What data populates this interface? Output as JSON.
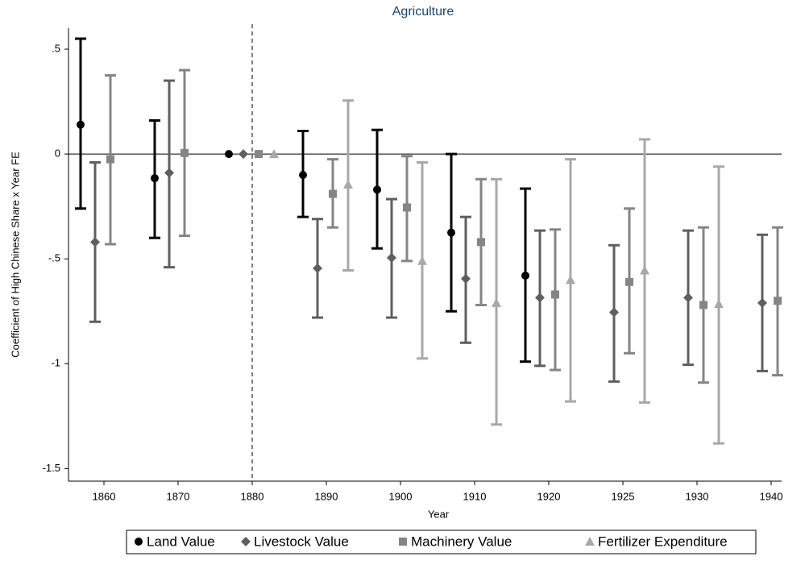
{
  "chart_data": {
    "type": "errorbar",
    "title": "Agriculture",
    "x_label": "Year",
    "y_label": "Coefficient of High Chinese Share x Year FE",
    "categories": [
      "1860",
      "1870",
      "1880",
      "1890",
      "1900",
      "1910",
      "1920",
      "1925",
      "1930",
      "1940"
    ],
    "ylim": [
      -1.56,
      0.6
    ],
    "yticks": [
      {
        "value": 0.5,
        "label": ".5"
      },
      0,
      {
        "value": -0.5,
        "label": "-.5"
      },
      -1,
      -1.5
    ],
    "hline": 0,
    "vline_category": "1880",
    "grid": false,
    "legend": "bottom",
    "series": [
      {
        "name": "Land Value",
        "color": "#000000",
        "marker": "circle",
        "values": [
          0.14,
          -0.115,
          0,
          -0.1,
          -0.17,
          -0.375,
          -0.58,
          null,
          null,
          null
        ],
        "lower": [
          -0.26,
          -0.4,
          null,
          -0.3,
          -0.45,
          -0.75,
          -0.99,
          null,
          null,
          null
        ],
        "upper": [
          0.55,
          0.16,
          null,
          0.11,
          0.115,
          0,
          -0.165,
          null,
          null,
          null
        ]
      },
      {
        "name": "Livestock Value",
        "color": "#5f5f5f",
        "marker": "diamond",
        "values": [
          -0.42,
          -0.09,
          0,
          -0.545,
          -0.495,
          -0.595,
          -0.685,
          -0.755,
          -0.685,
          -0.71
        ],
        "lower": [
          -0.8,
          -0.54,
          null,
          -0.78,
          -0.78,
          -0.9,
          -1.01,
          -1.085,
          -1.005,
          -1.035
        ],
        "upper": [
          -0.04,
          0.35,
          null,
          -0.31,
          -0.215,
          -0.3,
          -0.365,
          -0.435,
          -0.365,
          -0.385
        ]
      },
      {
        "name": "Machinery Value",
        "color": "#858585",
        "marker": "square",
        "values": [
          -0.025,
          0.005,
          0,
          -0.19,
          -0.255,
          -0.42,
          -0.67,
          -0.61,
          -0.72,
          -0.7
        ],
        "lower": [
          -0.43,
          -0.39,
          null,
          -0.35,
          -0.51,
          -0.72,
          -1.03,
          -0.95,
          -1.09,
          -1.055
        ],
        "upper": [
          0.375,
          0.4,
          null,
          -0.025,
          -0.01,
          -0.12,
          -0.36,
          -0.26,
          -0.35,
          -0.35
        ]
      },
      {
        "name": "Fertilizer Expenditure",
        "color": "#a8a8a8",
        "marker": "triangle",
        "values": [
          null,
          null,
          0,
          -0.145,
          -0.51,
          -0.71,
          -0.6,
          -0.555,
          -0.715,
          null
        ],
        "lower": [
          null,
          null,
          null,
          -0.555,
          -0.975,
          -1.29,
          -1.18,
          -1.185,
          -1.38,
          null
        ],
        "upper": [
          null,
          null,
          null,
          0.255,
          -0.04,
          -0.12,
          -0.025,
          0.07,
          -0.06,
          null
        ]
      }
    ]
  }
}
